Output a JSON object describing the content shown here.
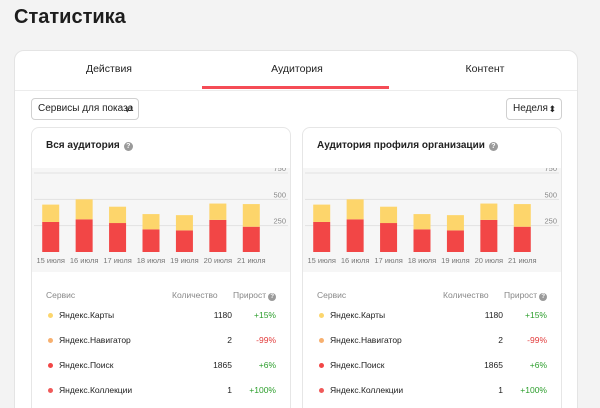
{
  "page_title": "Статистика",
  "tabs": [
    {
      "label": "Действия"
    },
    {
      "label": "Аудитория",
      "active": true
    },
    {
      "label": "Контент"
    }
  ],
  "controls": {
    "services_label": "Сервисы для показа",
    "services_icon": "sliders-icon",
    "period_label": "Неделя",
    "period_icon": "sort-updown-icon"
  },
  "colors": {
    "accent": "#f54c56",
    "bar_top": "#fdd56b",
    "bar_bottom": "#f24646",
    "dot_maps": "#fcd66d",
    "dot_nav": "#f7b06f",
    "dot_search": "#f24646",
    "dot_collections": "#f05a5a",
    "positive": "#2c9e2c",
    "negative": "#e23b3b"
  },
  "cards": [
    {
      "title": "Вся аудитория",
      "table": {
        "col_service": "Сервис",
        "col_count": "Количество",
        "col_growth": "Прирост",
        "rows": [
          {
            "service": "Яндекс.Карты",
            "count": "1180",
            "growth": "+15%",
            "dot": "#fcd66d",
            "trend": "up"
          },
          {
            "service": "Яндекс.Навигатор",
            "count": "2",
            "growth": "-99%",
            "dot": "#f7b06f",
            "trend": "down"
          },
          {
            "service": "Яндекс.Поиск",
            "count": "1865",
            "growth": "+6%",
            "dot": "#f24646",
            "trend": "up"
          },
          {
            "service": "Яндекс.Коллекции",
            "count": "1",
            "growth": "+100%",
            "dot": "#f05a5a",
            "trend": "up"
          }
        ]
      }
    },
    {
      "title": "Аудитория профиля организации",
      "table": {
        "col_service": "Сервис",
        "col_count": "Количество",
        "col_growth": "Прирост",
        "rows": [
          {
            "service": "Яндекс.Карты",
            "count": "1180",
            "growth": "+15%",
            "dot": "#fcd66d",
            "trend": "up"
          },
          {
            "service": "Яндекс.Навигатор",
            "count": "2",
            "growth": "-99%",
            "dot": "#f7b06f",
            "trend": "down"
          },
          {
            "service": "Яндекс.Поиск",
            "count": "1865",
            "growth": "+6%",
            "dot": "#f24646",
            "trend": "up"
          },
          {
            "service": "Яндекс.Коллекции",
            "count": "1",
            "growth": "+100%",
            "dot": "#f05a5a",
            "trend": "up"
          }
        ]
      }
    }
  ],
  "chart_data": [
    {
      "type": "bar",
      "stacked": true,
      "categories": [
        "15 июля",
        "16 июля",
        "17 июля",
        "18 июля",
        "19 июля",
        "20 июля",
        "21 июля"
      ],
      "series": [
        {
          "values": [
            285,
            310,
            275,
            215,
            205,
            305,
            240
          ],
          "color": "#f24646"
        },
        {
          "values": [
            165,
            190,
            155,
            145,
            145,
            155,
            215
          ],
          "color": "#fdd56b"
        }
      ],
      "ylim": [
        0,
        750
      ],
      "yticks": [
        250,
        500,
        750
      ],
      "ytick_labels": [
        "250",
        "500",
        "750"
      ]
    },
    {
      "type": "bar",
      "stacked": true,
      "categories": [
        "15 июля",
        "16 июля",
        "17 июля",
        "18 июля",
        "19 июля",
        "20 июля",
        "21 июля"
      ],
      "series": [
        {
          "values": [
            285,
            310,
            275,
            215,
            205,
            305,
            240
          ],
          "color": "#f24646"
        },
        {
          "values": [
            165,
            190,
            155,
            145,
            145,
            155,
            215
          ],
          "color": "#fdd56b"
        }
      ],
      "ylim": [
        0,
        750
      ],
      "yticks": [
        250,
        500,
        750
      ],
      "ytick_labels": [
        "250",
        "500",
        "750"
      ]
    }
  ]
}
